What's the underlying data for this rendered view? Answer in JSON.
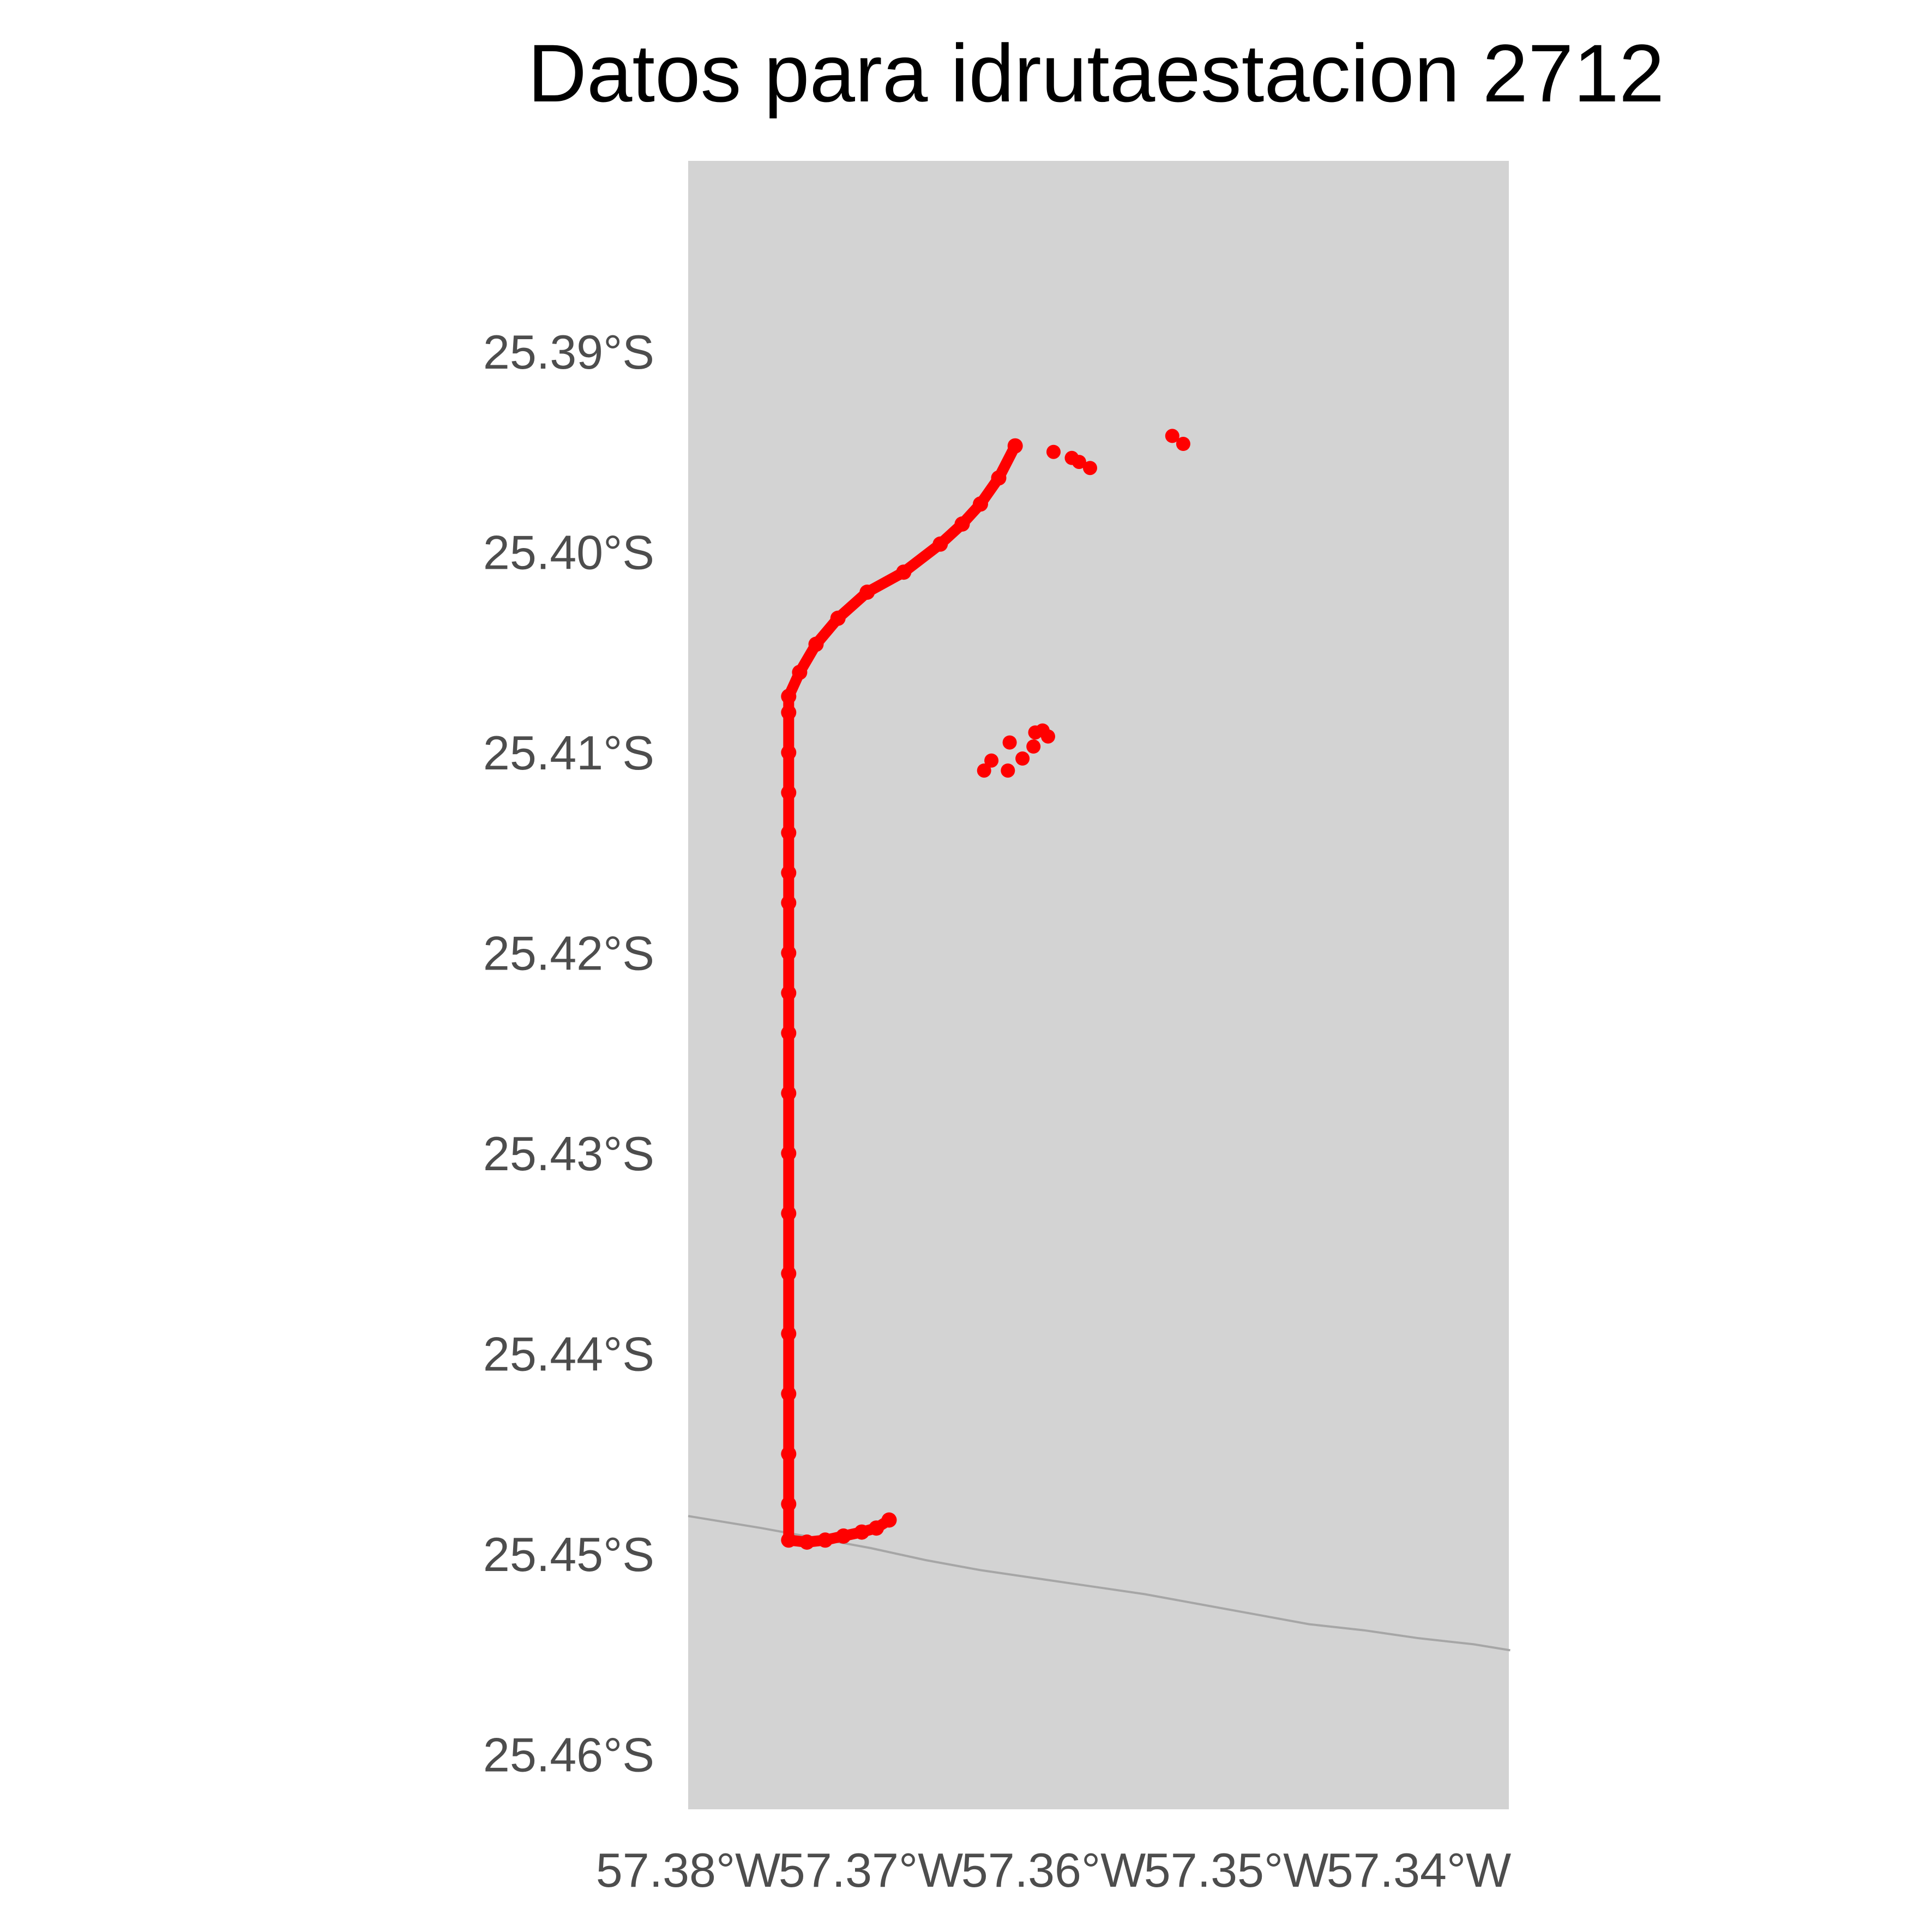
{
  "title": "Datos para idrutaestacion 2712",
  "colors": {
    "panel_background": "#d3d3d3",
    "track_points": "#ff0000",
    "boundary_line": "#a6a6a6",
    "tick_label_text": "#4d4d4d",
    "title_text": "#000000"
  },
  "chart_data": {
    "type": "scatter",
    "title": "Datos para idrutaestacion 2712",
    "xlabel": "",
    "ylabel": "",
    "xlim": [
      -57.38,
      -57.335
    ],
    "ylim": [
      -25.4637,
      -25.3817
    ],
    "grid": false,
    "legend": "none",
    "x_ticks": [
      {
        "value": -57.38,
        "label": "57.38°W"
      },
      {
        "value": -57.37,
        "label": "57.37°W"
      },
      {
        "value": -57.36,
        "label": "57.36°W"
      },
      {
        "value": -57.35,
        "label": "57.35°W"
      },
      {
        "value": -57.34,
        "label": "57.34°W"
      }
    ],
    "y_ticks": [
      {
        "value": -25.39,
        "label": "25.39°S"
      },
      {
        "value": -25.4,
        "label": "25.40°S"
      },
      {
        "value": -25.41,
        "label": "25.41°S"
      },
      {
        "value": -25.42,
        "label": "25.42°S"
      },
      {
        "value": -25.43,
        "label": "25.43°S"
      },
      {
        "value": -25.44,
        "label": "25.44°S"
      },
      {
        "value": -25.45,
        "label": "25.45°S"
      },
      {
        "value": -25.46,
        "label": "25.46°S"
      }
    ],
    "track": [
      [
        -57.3621,
        -25.3947
      ],
      [
        -57.363,
        -25.3963
      ],
      [
        -57.364,
        -25.3976
      ],
      [
        -57.365,
        -25.3986
      ],
      [
        -57.3662,
        -25.3996
      ],
      [
        -57.3682,
        -25.401
      ],
      [
        -57.3702,
        -25.402
      ],
      [
        -57.3718,
        -25.4033
      ],
      [
        -57.373,
        -25.4046
      ],
      [
        -57.3739,
        -25.406
      ],
      [
        -57.3745,
        -25.4072
      ],
      [
        -57.3745,
        -25.408
      ],
      [
        -57.3745,
        -25.41
      ],
      [
        -57.3745,
        -25.412
      ],
      [
        -57.3745,
        -25.414
      ],
      [
        -57.3745,
        -25.416
      ],
      [
        -57.3745,
        -25.4175
      ],
      [
        -57.3745,
        -25.42
      ],
      [
        -57.3745,
        -25.422
      ],
      [
        -57.3745,
        -25.424
      ],
      [
        -57.3745,
        -25.427
      ],
      [
        -57.3745,
        -25.43
      ],
      [
        -57.3745,
        -25.433
      ],
      [
        -57.3745,
        -25.436
      ],
      [
        -57.3745,
        -25.439
      ],
      [
        -57.3745,
        -25.442
      ],
      [
        -57.3745,
        -25.445
      ],
      [
        -57.3745,
        -25.4475
      ],
      [
        -57.3745,
        -25.4493
      ],
      [
        -57.3735,
        -25.4494
      ],
      [
        -57.3725,
        -25.4493
      ],
      [
        -57.3715,
        -25.4491
      ],
      [
        -57.3705,
        -25.4489
      ],
      [
        -57.3697,
        -25.4487
      ],
      [
        -57.369,
        -25.4483
      ]
    ],
    "track_labels_note": "",
    "boundary_line": [
      [
        -57.38,
        -25.4481
      ],
      [
        -57.376,
        -25.4487
      ],
      [
        -57.373,
        -25.4492
      ],
      [
        -57.37,
        -25.4497
      ],
      [
        -57.367,
        -25.4503
      ],
      [
        -57.364,
        -25.4508
      ],
      [
        -57.361,
        -25.4512
      ],
      [
        -57.358,
        -25.4516
      ],
      [
        -57.355,
        -25.452
      ],
      [
        -57.352,
        -25.4525
      ],
      [
        -57.349,
        -25.453
      ],
      [
        -57.346,
        -25.4535
      ],
      [
        -57.343,
        -25.4538
      ],
      [
        -57.34,
        -25.4542
      ],
      [
        -57.337,
        -25.4545
      ],
      [
        -57.335,
        -25.4548
      ]
    ],
    "stray_points": [
      [
        -57.3535,
        -25.3942
      ],
      [
        -57.3529,
        -25.3946
      ],
      [
        -57.3586,
        -25.3955
      ],
      [
        -57.358,
        -25.3958
      ],
      [
        -57.359,
        -25.3953
      ],
      [
        -57.36,
        -25.395
      ],
      [
        -57.3603,
        -25.4092
      ],
      [
        -57.3611,
        -25.4097
      ],
      [
        -57.3617,
        -25.4103
      ],
      [
        -57.3606,
        -25.4089
      ],
      [
        -57.3625,
        -25.4109
      ],
      [
        -57.3638,
        -25.4109
      ],
      [
        -57.3624,
        -25.4095
      ],
      [
        -57.3634,
        -25.4104
      ],
      [
        -57.361,
        -25.409
      ]
    ]
  }
}
